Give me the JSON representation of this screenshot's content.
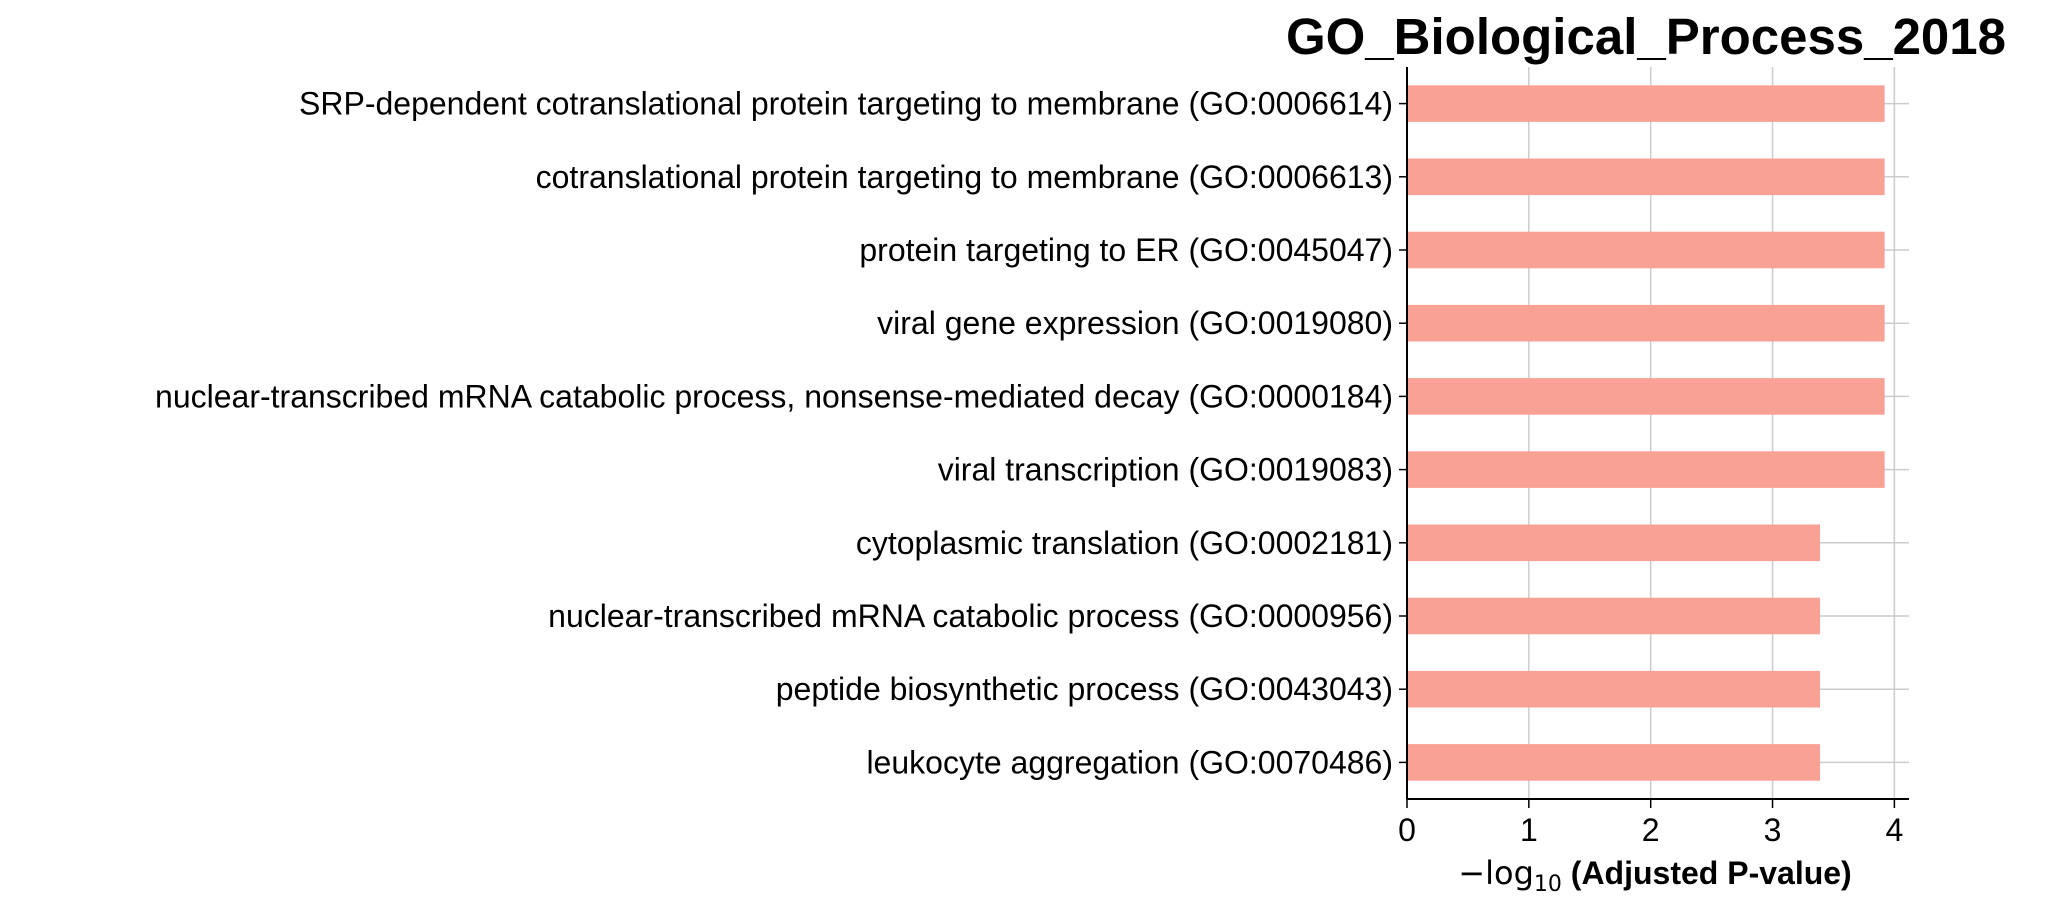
{
  "chart_data": {
    "type": "bar",
    "orientation": "horizontal",
    "title": "GO_Biological_Process_2018",
    "categories": [
      "SRP-dependent cotranslational protein targeting to membrane (GO:0006614)",
      "cotranslational protein targeting to membrane (GO:0006613)",
      "protein targeting to ER (GO:0045047)",
      "viral gene expression (GO:0019080)",
      "nuclear-transcribed mRNA catabolic process, nonsense-mediated decay (GO:0000184)",
      "viral transcription (GO:0019083)",
      "cytoplasmic translation (GO:0002181)",
      "nuclear-transcribed mRNA catabolic process (GO:0000956)",
      "peptide biosynthetic process (GO:0043043)",
      "leukocyte aggregation (GO:0070486)"
    ],
    "values": [
      3.92,
      3.92,
      3.92,
      3.92,
      3.92,
      3.92,
      3.39,
      3.39,
      3.39,
      3.39
    ],
    "xlabel": {
      "prefix": "−log",
      "subscript": "10",
      "bold": "(Adjusted P-value)"
    },
    "xticks": [
      "0",
      "1",
      "2",
      "3",
      "4"
    ],
    "xlim": [
      0,
      4.12
    ],
    "grid": true,
    "bar_color": "#f9a195",
    "grid_color": "#cccccc"
  }
}
